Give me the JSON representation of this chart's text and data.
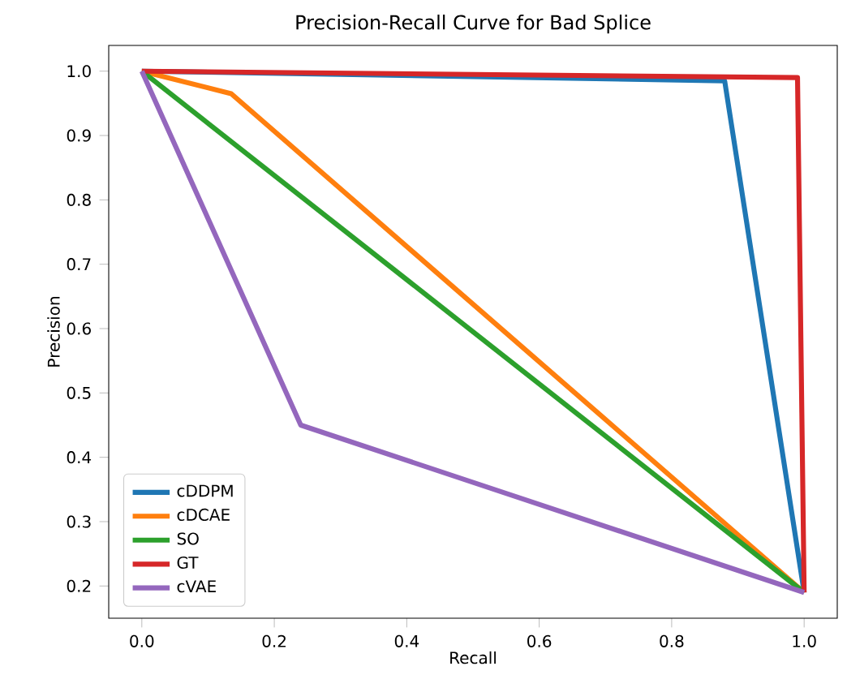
{
  "chart_data": {
    "type": "line",
    "title": "Precision-Recall Curve for Bad Splice",
    "xlabel": "Recall",
    "ylabel": "Precision",
    "xlim": [
      -0.05,
      1.05
    ],
    "ylim": [
      0.15,
      1.04
    ],
    "xticks": [
      {
        "value": 0,
        "label": "0.0"
      },
      0.2,
      0.4,
      0.6,
      0.8,
      {
        "value": 1,
        "label": "1.0"
      }
    ],
    "yticks": [
      0.2,
      0.3,
      0.4,
      0.5,
      0.6,
      0.7,
      0.8,
      0.9,
      {
        "value": 1,
        "label": "1.0"
      }
    ],
    "legend": "bottom left",
    "grid": false,
    "marker": "none",
    "line_style": "solid",
    "series": [
      {
        "name": "cDDPM",
        "color": "#1f77b4",
        "x": [
          0,
          0.88,
          1
        ],
        "values": [
          1,
          0.985,
          0.19
        ]
      },
      {
        "name": "cDCAE",
        "color": "#ff7f0e",
        "x": [
          0,
          0.135,
          1
        ],
        "values": [
          1,
          0.965,
          0.19
        ]
      },
      {
        "name": "SO",
        "color": "#2ca02c",
        "x": [
          0,
          1
        ],
        "values": [
          1,
          0.19
        ]
      },
      {
        "name": "GT",
        "color": "#d62728",
        "x": [
          0,
          0.99,
          1
        ],
        "values": [
          1,
          0.99,
          0.19
        ]
      },
      {
        "name": "cVAE",
        "color": "#9467bd",
        "x": [
          0,
          0.24,
          1
        ],
        "values": [
          1,
          0.45,
          0.19
        ]
      }
    ]
  }
}
